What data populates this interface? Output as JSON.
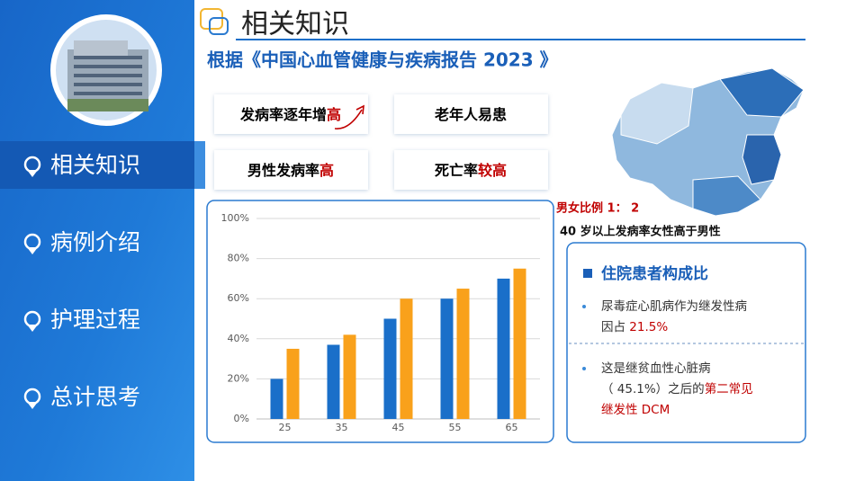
{
  "sidebar": {
    "menu": [
      "相关知识",
      "病例介绍",
      "护理过程",
      "总计思考"
    ]
  },
  "header": {
    "title": "相关知识",
    "subtitle": "根据《中国心血管健康与疾病报告 2023 》"
  },
  "facts": [
    [
      {
        "text": "发病率逐年增",
        "color": "#000000"
      },
      {
        "text": "高",
        "color": "#c00000"
      }
    ],
    [
      {
        "text": "老年人易患",
        "color": "#000000"
      }
    ],
    [
      {
        "text": "男性发病率",
        "color": "#000000"
      },
      {
        "text": "高",
        "color": "#c00000"
      }
    ],
    [
      {
        "text": "死亡率",
        "color": "#000000"
      },
      {
        "text": "较高",
        "color": "#c00000"
      }
    ]
  ],
  "notes": {
    "ratio": "男女比例 1： 2",
    "age": "40 岁以上发病率女性高于男性"
  },
  "panel": {
    "title": "住院患者构成比",
    "items": [
      {
        "lines": [
          [
            {
              "text": "尿毒症心肌病作为继发性病",
              "color": "#333333"
            }
          ],
          [
            {
              "text": "因占 ",
              "color": "#333333"
            },
            {
              "text": "21.5%",
              "color": "#c00000"
            }
          ]
        ]
      },
      {
        "lines": [
          [
            {
              "text": "这是继贫血性心脏病",
              "color": "#333333"
            }
          ],
          [
            {
              "text": "（ 45.1%）之后的",
              "color": "#333333"
            },
            {
              "text": "第二常见",
              "color": "#c00000"
            }
          ],
          [
            {
              "text": "继发性 DCM",
              "color": "#c00000"
            }
          ]
        ]
      }
    ]
  },
  "chart_data": {
    "type": "bar",
    "categories": [
      "25",
      "35",
      "45",
      "55",
      "65"
    ],
    "series": [
      {
        "color": "#1a6fc9",
        "values": [
          20,
          37,
          50,
          60,
          70
        ]
      },
      {
        "color": "#f9a11b",
        "values": [
          35,
          42,
          60,
          65,
          75
        ]
      }
    ],
    "ylim": [
      0,
      100
    ],
    "yticks": [
      {
        "value": 0,
        "label": "0%"
      },
      {
        "value": 20,
        "label": "20%"
      },
      {
        "value": 40,
        "label": "40%"
      },
      {
        "value": 60,
        "label": "60%"
      },
      {
        "value": 80,
        "label": "80%"
      },
      {
        "value": 100,
        "label": "100%"
      }
    ],
    "grid": true
  }
}
